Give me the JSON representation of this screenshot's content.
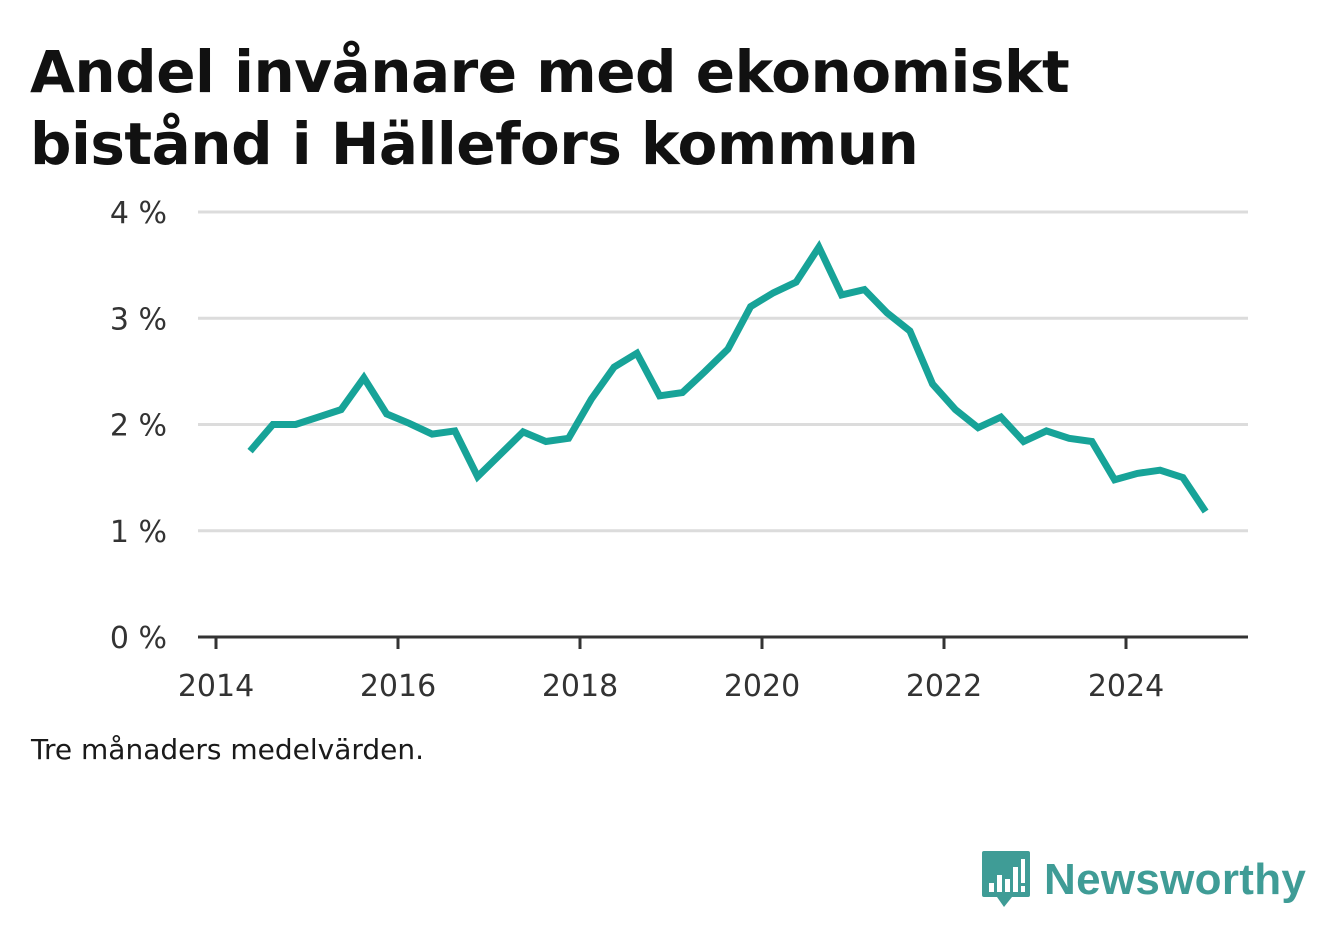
{
  "title": "Andel invånare med ekonomiskt bistånd i Hällefors kommun",
  "note": "Tre månaders medelvärden.",
  "brand": {
    "name": "Newsworthy",
    "icon": "newsworthy-logo-icon",
    "color": "#3f9c96"
  },
  "chart_data": {
    "type": "line",
    "title": "Andel invånare med ekonomiskt bistånd i Hällefors kommun",
    "xlabel": "",
    "ylabel": "",
    "xlim": [
      2014,
      2025.35
    ],
    "ylim": [
      0,
      4
    ],
    "x_ticks": [
      {
        "value": 2014,
        "label": "2014"
      },
      {
        "value": 2016,
        "label": "2016"
      },
      {
        "value": 2018,
        "label": "2018"
      },
      {
        "value": 2020,
        "label": "2020"
      },
      {
        "value": 2022,
        "label": "2022"
      },
      {
        "value": 2024,
        "label": "2024"
      }
    ],
    "y_ticks": [
      {
        "value": 0,
        "label": "0 %"
      },
      {
        "value": 1,
        "label": "1 %"
      },
      {
        "value": 2,
        "label": "2 %"
      },
      {
        "value": 3,
        "label": "3 %"
      },
      {
        "value": 4,
        "label": "4 %"
      }
    ],
    "grid": true,
    "color": "#17a398",
    "series": [
      {
        "x": [
          "2014-05",
          "2014-08",
          "2014-11",
          "2015-02",
          "2015-05",
          "2015-08",
          "2015-11",
          "2016-02",
          "2016-05",
          "2016-08",
          "2016-11",
          "2017-02",
          "2017-05",
          "2017-08",
          "2017-11",
          "2018-02",
          "2018-05",
          "2018-08",
          "2018-11",
          "2019-02",
          "2019-05",
          "2019-08",
          "2019-11",
          "2020-02",
          "2020-05",
          "2020-08",
          "2020-11",
          "2021-02",
          "2021-05",
          "2021-08",
          "2021-11",
          "2022-02",
          "2022-05",
          "2022-08",
          "2022-11",
          "2023-02",
          "2023-05",
          "2023-08",
          "2023-11",
          "2024-02",
          "2024-05",
          "2024-08",
          "2024-11"
        ],
        "values": [
          1.75,
          2.0,
          2.0,
          2.07,
          2.14,
          2.44,
          2.1,
          2.01,
          1.91,
          1.94,
          1.51,
          1.72,
          1.93,
          1.84,
          1.87,
          2.24,
          2.54,
          2.67,
          2.27,
          2.3,
          2.5,
          2.71,
          3.11,
          3.24,
          3.34,
          3.67,
          3.22,
          3.27,
          3.05,
          2.88,
          2.38,
          2.14,
          1.97,
          2.07,
          1.84,
          1.94,
          1.87,
          1.84,
          1.48,
          1.54,
          1.57,
          1.5,
          1.18
        ]
      }
    ]
  }
}
